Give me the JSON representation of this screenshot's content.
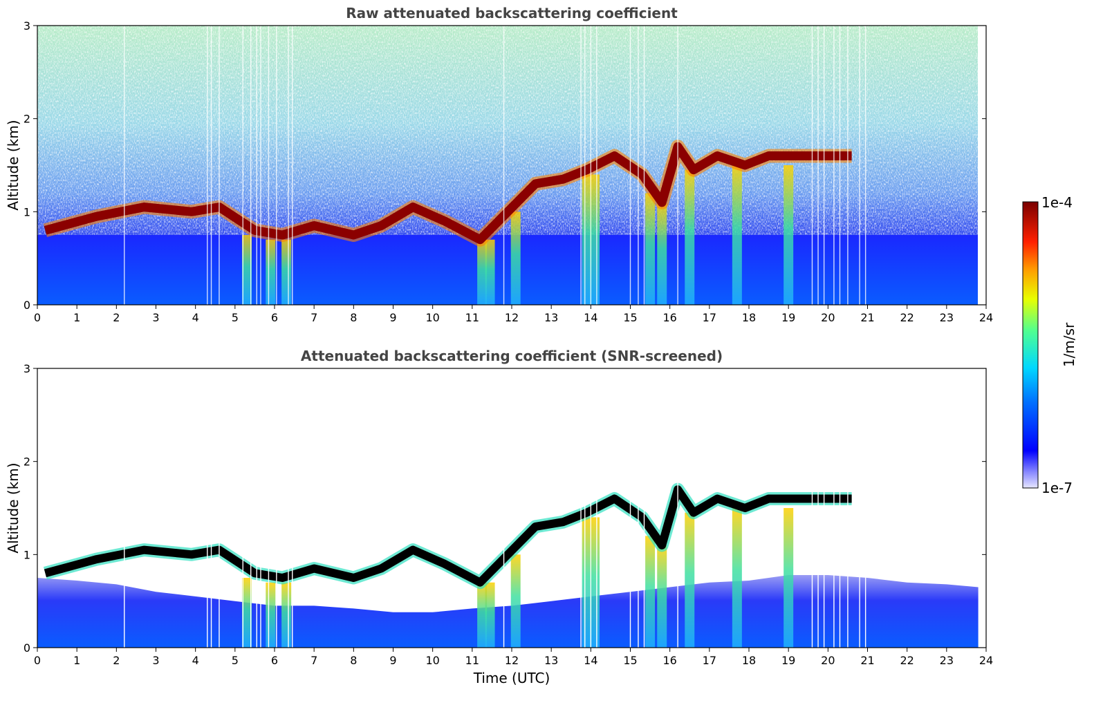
{
  "chart_data": [
    {
      "type": "heatmap",
      "title": "Raw attenuated backscattering coefficient",
      "xlabel": "",
      "ylabel": "Altitude (km)",
      "xlim": [
        0,
        24
      ],
      "ylim": [
        0,
        3
      ],
      "xticks": [
        "0",
        "1",
        "2",
        "3",
        "4",
        "5",
        "6",
        "7",
        "8",
        "9",
        "10",
        "11",
        "12",
        "13",
        "14",
        "15",
        "16",
        "17",
        "18",
        "19",
        "20",
        "21",
        "22",
        "23",
        "24"
      ],
      "yticks": [
        "0",
        "1",
        "2",
        "3"
      ],
      "cloud_base_km": [
        {
          "t": 0.2,
          "z": 0.8
        },
        {
          "t": 1.5,
          "z": 0.95
        },
        {
          "t": 2.7,
          "z": 1.05
        },
        {
          "t": 3.9,
          "z": 1.0
        },
        {
          "t": 4.6,
          "z": 1.05
        },
        {
          "t": 5.5,
          "z": 0.8
        },
        {
          "t": 6.2,
          "z": 0.75
        },
        {
          "t": 7.0,
          "z": 0.85
        },
        {
          "t": 8.0,
          "z": 0.75
        },
        {
          "t": 8.7,
          "z": 0.85
        },
        {
          "t": 9.5,
          "z": 1.05
        },
        {
          "t": 10.3,
          "z": 0.9
        },
        {
          "t": 11.2,
          "z": 0.7
        },
        {
          "t": 11.9,
          "z": 1.0
        },
        {
          "t": 12.6,
          "z": 1.3
        },
        {
          "t": 13.3,
          "z": 1.35
        },
        {
          "t": 13.9,
          "z": 1.45
        },
        {
          "t": 14.6,
          "z": 1.6
        },
        {
          "t": 15.3,
          "z": 1.4
        },
        {
          "t": 15.8,
          "z": 1.1
        },
        {
          "t": 16.2,
          "z": 1.7
        },
        {
          "t": 16.6,
          "z": 1.45
        },
        {
          "t": 17.2,
          "z": 1.6
        },
        {
          "t": 17.9,
          "z": 1.5
        },
        {
          "t": 18.5,
          "z": 1.6
        },
        {
          "t": 19.2,
          "z": 1.6
        },
        {
          "t": 20.0,
          "z": 1.6
        },
        {
          "t": 20.6,
          "z": 1.6
        }
      ]
    },
    {
      "type": "heatmap",
      "title": "Attenuated backscattering coefficient (SNR-screened)",
      "xlabel": "Time (UTC)",
      "ylabel": "Altitude (km)",
      "xlim": [
        0,
        24
      ],
      "ylim": [
        0,
        3
      ],
      "xticks": [
        "0",
        "1",
        "2",
        "3",
        "4",
        "5",
        "6",
        "7",
        "8",
        "9",
        "10",
        "11",
        "12",
        "13",
        "14",
        "15",
        "16",
        "17",
        "18",
        "19",
        "20",
        "21",
        "22",
        "23",
        "24"
      ],
      "yticks": [
        "0",
        "1",
        "2",
        "3"
      ]
    }
  ],
  "colorbar": {
    "label": "1/m/sr",
    "max_label": "1e-4",
    "min_label": "1e-7",
    "scale": "log",
    "range": [
      1e-07,
      0.0001
    ],
    "colors": [
      "#e6e6ff",
      "#0000ff",
      "#0080ff",
      "#00e0ff",
      "#40ff80",
      "#ffff00",
      "#ff8000",
      "#ff0000",
      "#800000"
    ]
  }
}
